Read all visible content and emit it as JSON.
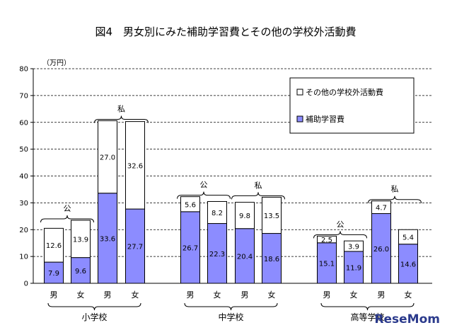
{
  "chart_data": {
    "type": "bar",
    "title": "図4　男女別にみた補助学習費とその他の学校外活動費",
    "ylabel": "（万円）",
    "ylim": [
      0,
      80
    ],
    "yticks": [
      0,
      10,
      20,
      30,
      40,
      50,
      60,
      70,
      80
    ],
    "grid": true,
    "stacked": true,
    "legend_position": "top-right",
    "sections": [
      {
        "label": "小学校",
        "groups": [
          {
            "label": "公",
            "bars": [
              0,
              1
            ]
          },
          {
            "label": "私",
            "bars": [
              2,
              3
            ]
          }
        ]
      },
      {
        "label": "中学校",
        "groups": [
          {
            "label": "公",
            "bars": [
              4,
              5
            ]
          },
          {
            "label": "私",
            "bars": [
              6,
              7
            ]
          }
        ]
      },
      {
        "label": "高等学校",
        "groups": [
          {
            "label": "公",
            "bars": [
              8,
              9
            ]
          },
          {
            "label": "私",
            "bars": [
              10,
              11
            ]
          }
        ]
      }
    ],
    "categories": [
      "男",
      "女",
      "男",
      "女",
      "男",
      "女",
      "男",
      "女",
      "男",
      "女",
      "男",
      "女"
    ],
    "series": [
      {
        "name": "補助学習費",
        "color": "#8c8cff",
        "values": [
          7.9,
          9.6,
          33.6,
          27.7,
          26.7,
          22.3,
          20.4,
          18.6,
          15.1,
          11.9,
          26.0,
          14.6
        ],
        "labels": [
          "7.9",
          "9.6",
          "33.6",
          "27.7",
          "26.7",
          "22.3",
          "20.4",
          "18.6",
          "15.1",
          "11.9",
          "26.0",
          "14.6"
        ]
      },
      {
        "name": "その他の学校外活動費",
        "color": "#ffffff",
        "values": [
          12.6,
          13.9,
          27.0,
          32.6,
          5.6,
          8.2,
          9.8,
          13.5,
          2.5,
          3.9,
          4.7,
          5.4
        ],
        "labels": [
          "12.6",
          "13.9",
          "27.0",
          "32.6",
          "5.6",
          "8.2",
          "9.8",
          "13.5",
          "2.5",
          "3.9",
          "4.7",
          "5.4"
        ]
      }
    ]
  },
  "logo": {
    "text": "ReseMom",
    "color": "#2b3a8c",
    "brand_color": "#d4202a"
  }
}
